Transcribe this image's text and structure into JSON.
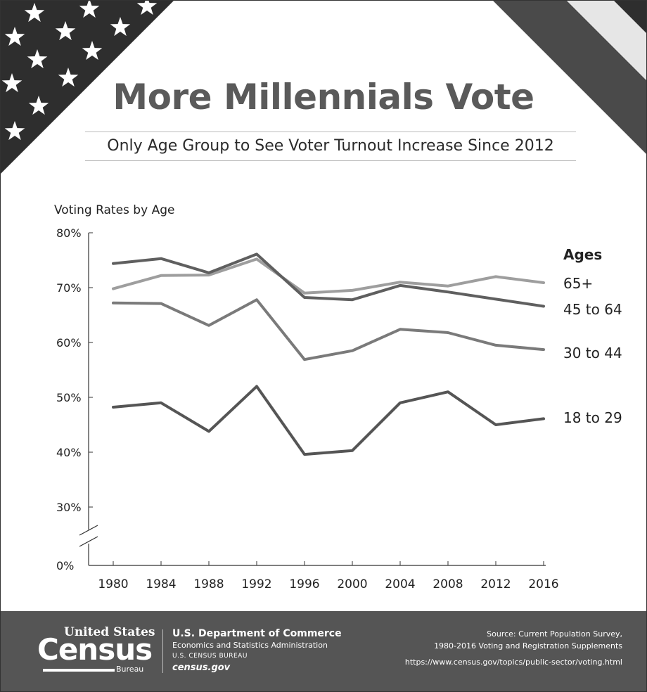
{
  "header": {
    "title": "More Millennials Vote",
    "subtitle": "Only Age Group to See Voter Turnout Increase Since 2012"
  },
  "colors": {
    "flag_dark": "#2e2e2e",
    "footer_bg": "#555555",
    "series_18_29": "#555555",
    "series_30_44": "#7a7a7a",
    "series_45_64": "#5f5f5f",
    "series_65": "#9e9e9e"
  },
  "chart_data": {
    "type": "line",
    "title": "Voting Rates by Age",
    "legend_title": "Ages",
    "x": [
      "1980",
      "1984",
      "1988",
      "1992",
      "1996",
      "2000",
      "2004",
      "2008",
      "2012",
      "2016"
    ],
    "y_ticks": [
      "80%",
      "70%",
      "60%",
      "50%",
      "40%",
      "30%",
      "0%"
    ],
    "y_range": [
      30,
      80
    ],
    "y_axis_break": true,
    "grid": false,
    "legend_placement": "right",
    "series": [
      {
        "name": "65+",
        "values": [
          69.8,
          72.2,
          72.3,
          75.2,
          69.0,
          69.5,
          71.0,
          70.3,
          72.0,
          70.9
        ]
      },
      {
        "name": "45 to 64",
        "values": [
          74.4,
          75.3,
          72.7,
          76.1,
          68.2,
          67.8,
          70.4,
          69.2,
          67.9,
          66.6
        ]
      },
      {
        "name": "30 to 44",
        "values": [
          67.2,
          67.1,
          63.1,
          67.8,
          56.9,
          58.5,
          62.4,
          61.8,
          59.5,
          58.7
        ]
      },
      {
        "name": "18 to 29",
        "values": [
          48.2,
          49.0,
          43.8,
          52.0,
          39.6,
          40.3,
          49.0,
          51.0,
          45.0,
          46.1
        ]
      }
    ]
  },
  "footer": {
    "logo_line1": "United States",
    "logo_line2": "Census",
    "logo_line3": "Bureau",
    "dept_name": "U.S. Department of Commerce",
    "dept_sub": "Economics and Statistics Administration",
    "dept_bureau": "U.S. CENSUS BUREAU",
    "dept_site": "census.gov",
    "source_line1": "Source: Current Population Survey,",
    "source_line2": "1980-2016 Voting and Registration Supplements",
    "source_url": "https://www.census.gov/topics/public-sector/voting.html"
  }
}
